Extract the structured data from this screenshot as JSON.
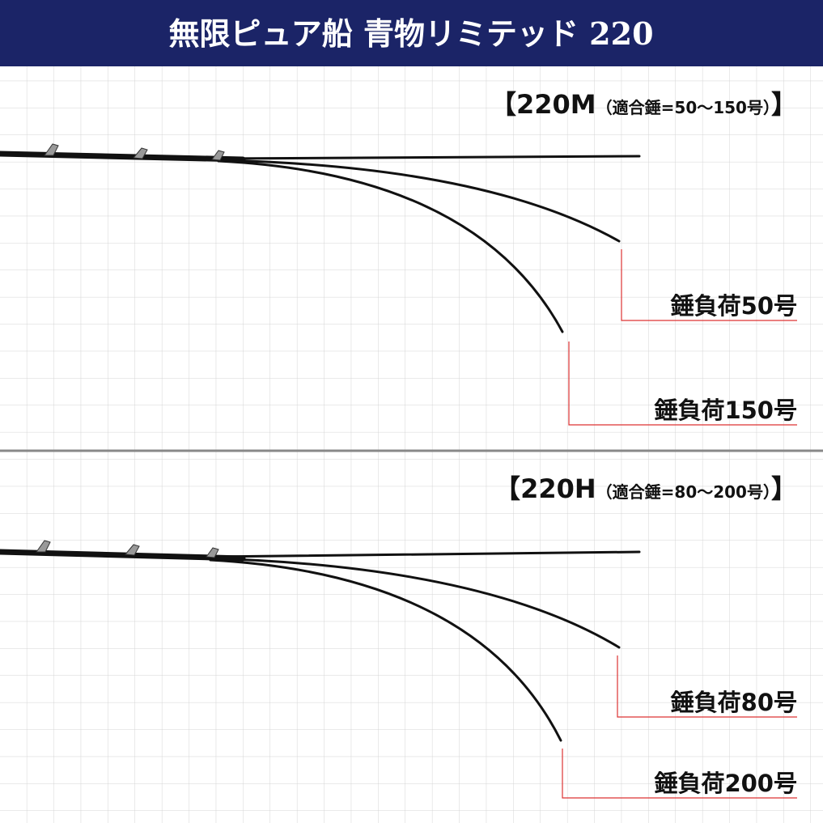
{
  "header": {
    "title": "無限ピュア船 青物リミテッド 220"
  },
  "panels": [
    {
      "open": "【",
      "model": "220M",
      "spec": "（適合錘=50～150号）",
      "close": "】",
      "labels": [
        "錘負荷50号",
        "錘負荷150号"
      ]
    },
    {
      "open": "【",
      "model": "220H",
      "spec": "（適合錘=80～200号）",
      "close": "】",
      "labels": [
        "錘負荷80号",
        "錘負荷200号"
      ]
    }
  ]
}
